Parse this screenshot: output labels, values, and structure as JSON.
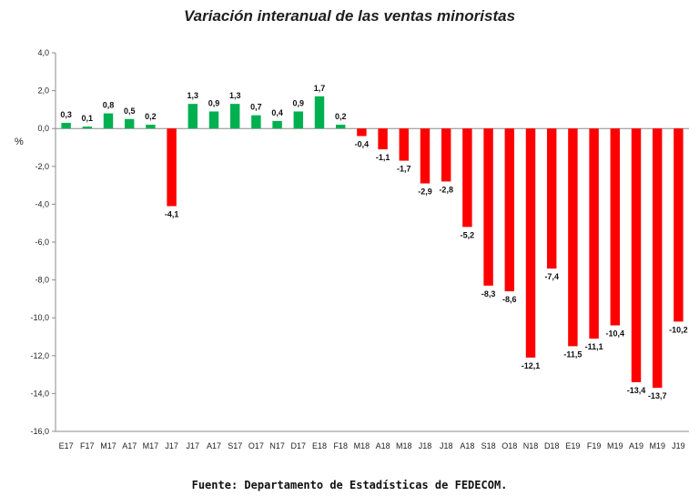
{
  "chart_data": {
    "type": "bar",
    "title": "Variación interanual de las ventas minoristas",
    "ylabel": "%",
    "xlabel": "",
    "ylim": [
      -16,
      4
    ],
    "yticks": [
      "4,0",
      "2,0",
      "0,0",
      "-2,0",
      "-4,0",
      "-6,0",
      "-8,0",
      "-10,0",
      "-12,0",
      "-14,0",
      "-16,0"
    ],
    "categories": [
      "E17",
      "F17",
      "M17",
      "A17",
      "M17",
      "J17",
      "J17",
      "A17",
      "S17",
      "O17",
      "N17",
      "D17",
      "E18",
      "F18",
      "M18",
      "A18",
      "M18",
      "J18",
      "J18",
      "A18",
      "S18",
      "O18",
      "N18",
      "D18",
      "E19",
      "F19",
      "M19",
      "A19",
      "M19",
      "J19"
    ],
    "values": [
      0.3,
      0.1,
      0.8,
      0.5,
      0.2,
      -4.1,
      1.3,
      0.9,
      1.3,
      0.7,
      0.4,
      0.9,
      1.7,
      0.2,
      -0.4,
      -1.1,
      -1.7,
      -2.9,
      -2.8,
      -5.2,
      -8.3,
      -8.6,
      -12.1,
      -7.4,
      -11.5,
      -11.1,
      -10.4,
      -13.4,
      -13.7,
      -10.2
    ],
    "value_labels": [
      "0,3",
      "0,1",
      "0,8",
      "0,5",
      "0,2",
      "-4,1",
      "1,3",
      "0,9",
      "1,3",
      "0,7",
      "0,4",
      "0,9",
      "1,7",
      "0,2",
      "-0,4",
      "-1,1",
      "-1,7",
      "-2,9",
      "-2,8",
      "-5,2",
      "-8,3",
      "-8,6",
      "-12,1",
      "-7,4",
      "-11,5",
      "-11,1",
      "-10,4",
      "-13,4",
      "-13,7",
      "-10,2"
    ],
    "grid": false,
    "legend": "none",
    "colors": {
      "positive": "#00b050",
      "negative": "#ff0000"
    }
  },
  "source": "Fuente: Departamento de Estadísticas de FEDECOM."
}
